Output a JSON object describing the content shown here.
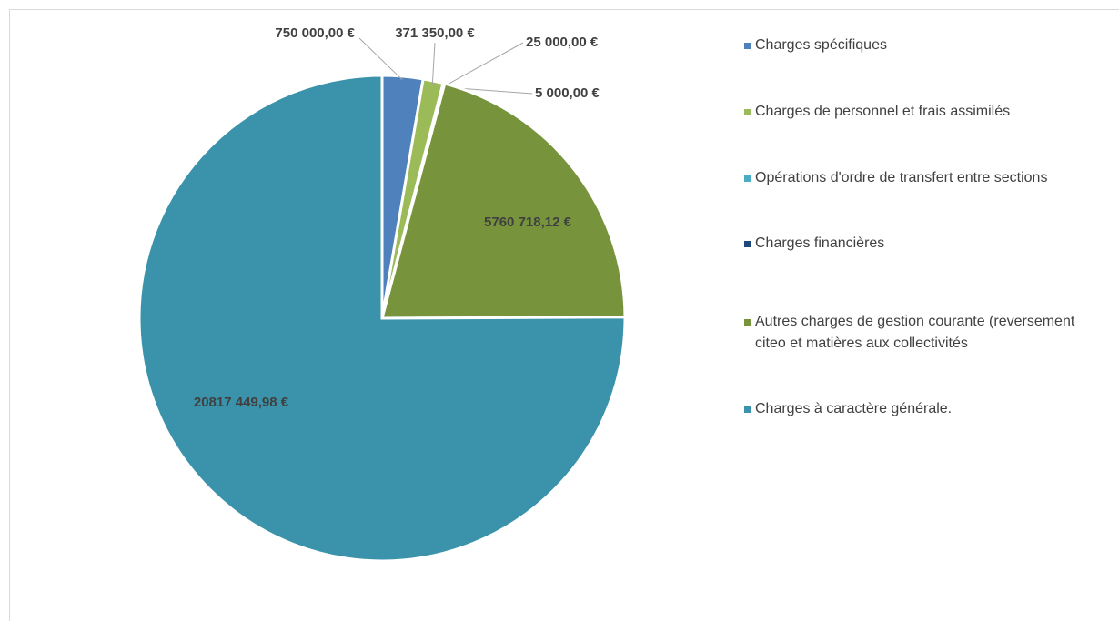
{
  "chart_data": {
    "type": "pie",
    "categories": [
      "Charges spécifiques",
      "Charges de personnel et frais assimilés",
      "Opérations d'ordre de transfert entre sections",
      "Charges financières",
      "Autres charges de gestion courante (reversement citeo et matières aux collectivités",
      "Charges à caractère générale."
    ],
    "values": [
      750000,
      371350,
      25000,
      5000,
      5760718.12,
      20817449.98
    ],
    "value_labels": [
      "750 000,00 €",
      "371 350,00 €",
      "25 000,00 €",
      "5 000,00 €",
      "5760 718,12 €",
      "20817 449,98 €"
    ],
    "colors": [
      "#4f81bd",
      "#9bbb59",
      "#4bacc6",
      "#1f497d",
      "#77933c",
      "#3a93ab"
    ],
    "legend": "right"
  }
}
